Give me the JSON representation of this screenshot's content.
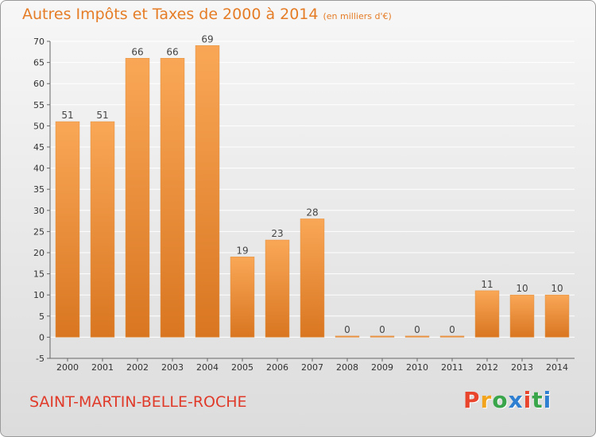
{
  "title": "Autres Impôts et Taxes de 2000 à 2014",
  "unit": "(en milliers d'€)",
  "commune": "SAINT-MARTIN-BELLE-ROCHE",
  "logo": {
    "text": "Proxiti",
    "colors": [
      "#e8452c",
      "#f2a51c",
      "#3aa64b",
      "#2e7fd1",
      "#e8452c",
      "#3aa64b",
      "#2e7fd1"
    ]
  },
  "colors": {
    "bar_light": "#f9a756",
    "bar_dark": "#d97621",
    "grid": "#ffffff"
  },
  "chart_data": {
    "type": "bar",
    "title": "Autres Impôts et Taxes de 2000 à 2014",
    "categories": [
      "2000",
      "2001",
      "2002",
      "2003",
      "2004",
      "2005",
      "2006",
      "2007",
      "2008",
      "2009",
      "2010",
      "2011",
      "2012",
      "2013",
      "2014"
    ],
    "values": [
      51,
      51,
      66,
      66,
      69,
      19,
      23,
      28,
      0,
      0,
      0,
      0,
      11,
      10,
      10
    ],
    "data_labels": [
      "51",
      "51",
      "66",
      "66",
      "69",
      "19",
      "23",
      "28",
      "0",
      "0",
      "0",
      "0",
      "11",
      "10",
      "10"
    ],
    "ylim": [
      -5,
      70
    ],
    "yticks": [
      -5,
      0,
      5,
      10,
      15,
      20,
      25,
      30,
      35,
      40,
      45,
      50,
      55,
      60,
      65,
      70
    ],
    "grid": true
  }
}
